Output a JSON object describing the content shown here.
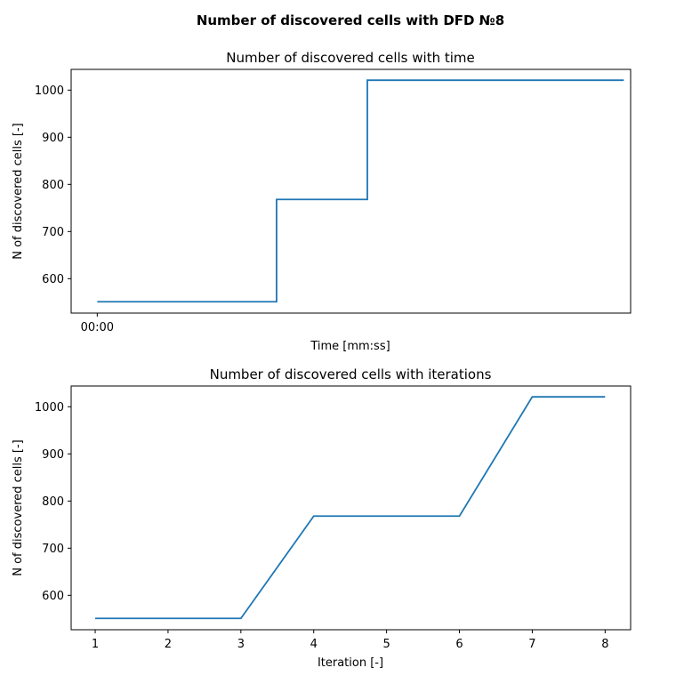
{
  "figure_title": "Number of discovered cells with DFD №8",
  "colors": {
    "series": "#1f77b4"
  },
  "chart_data": [
    {
      "type": "line",
      "drawstyle": "steps-post",
      "title": "Number of discovered cells with time",
      "xlabel": "Time [mm:ss]",
      "ylabel": "N of discovered cells [-]",
      "xticks": [
        {
          "t": 0,
          "label": "00:00"
        }
      ],
      "yticks": [
        600,
        700,
        800,
        900,
        1000
      ],
      "xlim": [
        -0.00115,
        0.0235
      ],
      "ylim": [
        527,
        1044
      ],
      "grid": false,
      "series": [
        {
          "x": [
            0,
            0.0079,
            0.0119,
            0.0232
          ],
          "y": [
            551,
            768,
            1021,
            1021
          ]
        }
      ]
    },
    {
      "type": "line",
      "title": "Number of discovered cells with iterations",
      "xlabel": "Iteration [-]",
      "ylabel": "N of discovered cells [-]",
      "xticks": [
        1,
        2,
        3,
        4,
        5,
        6,
        7,
        8
      ],
      "yticks": [
        600,
        700,
        800,
        900,
        1000
      ],
      "xlim": [
        0.67,
        8.35
      ],
      "ylim": [
        527,
        1044
      ],
      "grid": false,
      "series": [
        {
          "x": [
            1,
            2,
            3,
            4,
            5,
            6,
            7,
            8
          ],
          "y": [
            551,
            551,
            551,
            768,
            768,
            768,
            1021,
            1021
          ]
        }
      ]
    }
  ]
}
